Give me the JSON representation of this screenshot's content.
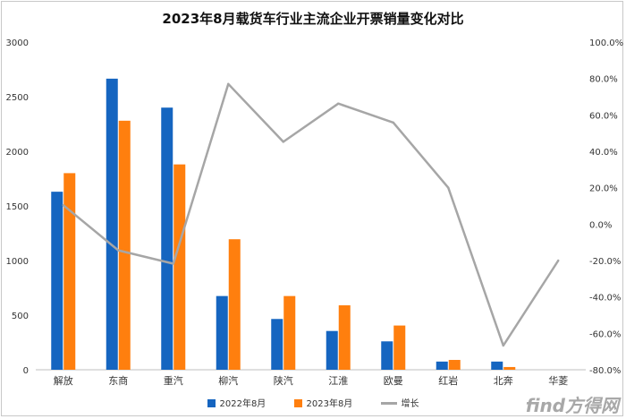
{
  "chart_data": {
    "type": "bar",
    "title": "2023年8月载货车行业主流企业开票销量变化对比",
    "categories": [
      "解放",
      "东商",
      "重汽",
      "柳汽",
      "陕汽",
      "江淮",
      "欧曼",
      "红岩",
      "北奔",
      "华菱"
    ],
    "series": [
      {
        "name": "2022年8月",
        "type": "bar",
        "axis": "left",
        "color": "#1565c0",
        "values": [
          1630,
          2665,
          2400,
          675,
          465,
          355,
          260,
          75,
          75,
          0
        ]
      },
      {
        "name": "2023年8月",
        "type": "bar",
        "axis": "left",
        "color": "#ff7f0e",
        "values": [
          1800,
          2280,
          1880,
          1195,
          675,
          590,
          405,
          90,
          25,
          0
        ]
      },
      {
        "name": "增长",
        "type": "line",
        "axis": "right",
        "color": "#a6a6a6",
        "values": [
          10.4,
          -14.4,
          -21.7,
          77.0,
          45.2,
          66.2,
          55.8,
          20.0,
          -66.7,
          -20.0
        ]
      }
    ],
    "left_axis": {
      "min": 0,
      "max": 3000,
      "ticks": [
        0,
        500,
        1000,
        1500,
        2000,
        2500,
        3000
      ]
    },
    "right_axis": {
      "min": -80,
      "max": 100,
      "ticks": [
        -80,
        -60,
        -40,
        -20,
        0,
        20,
        40,
        60,
        80,
        100
      ],
      "tick_labels": [
        "-80.0%",
        "-60.0%",
        "-40.0%",
        "-20.0%",
        "0.0%",
        "20.0%",
        "40.0%",
        "60.0%",
        "80.0%",
        "100.0%"
      ]
    },
    "grid": false,
    "legend_position": "bottom"
  },
  "watermark": "find方得网"
}
